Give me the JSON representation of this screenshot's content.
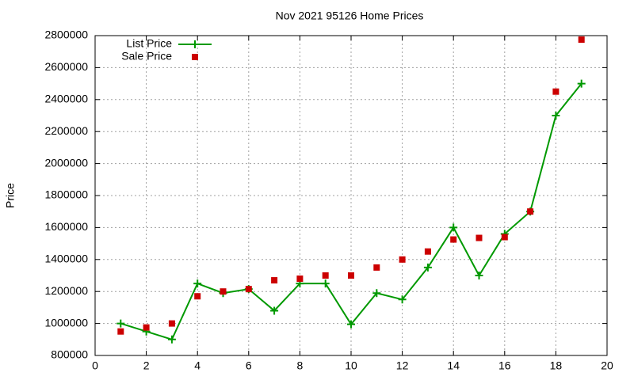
{
  "chart_data": {
    "type": "line",
    "title": "Nov 2021 95126 Home Prices",
    "y_label": "Price",
    "x": [
      1,
      2,
      3,
      4,
      5,
      6,
      7,
      8,
      9,
      10,
      11,
      12,
      13,
      14,
      15,
      16,
      17,
      18,
      19
    ],
    "series": [
      {
        "name": "List Price",
        "color": "#009900",
        "style": "linespoints",
        "values": [
          1000000,
          950000,
          900000,
          1250000,
          1190000,
          1215000,
          1080000,
          1250000,
          1250000,
          995000,
          1190000,
          1150000,
          1350000,
          1600000,
          1300000,
          1560000,
          1700000,
          2300000,
          2500000
        ]
      },
      {
        "name": "Sale Price",
        "color": "#cc0000",
        "style": "points",
        "values": [
          950000,
          975000,
          1000000,
          1170000,
          1200000,
          1215000,
          1270000,
          1280000,
          1300000,
          1300000,
          1350000,
          1400000,
          1450000,
          1525000,
          1535000,
          1540000,
          1700000,
          2450000,
          2775000
        ]
      }
    ],
    "xlim": [
      0,
      20
    ],
    "xticks": [
      0,
      2,
      4,
      6,
      8,
      10,
      12,
      14,
      16,
      18,
      20
    ],
    "ylim": [
      800000,
      2800000
    ],
    "yticks": [
      800000,
      1000000,
      1200000,
      1400000,
      1600000,
      1800000,
      2000000,
      2200000,
      2400000,
      2600000,
      2800000
    ],
    "grid": true,
    "legend": "top-left"
  }
}
